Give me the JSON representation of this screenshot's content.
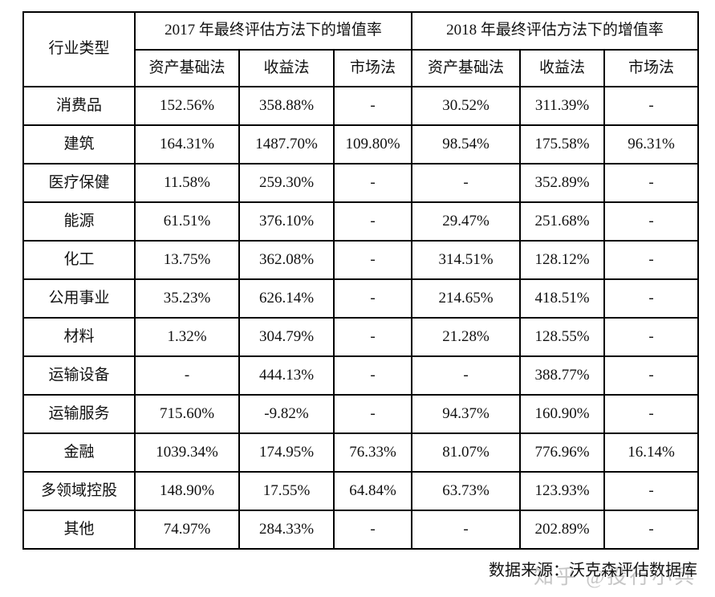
{
  "table": {
    "corner_header": "行业类型",
    "year_headers": [
      "2017 年最终评估方法下的增值率",
      "2018 年最终评估方法下的增值率"
    ],
    "method_headers": [
      "资产基础法",
      "收益法",
      "市场法",
      "资产基础法",
      "收益法",
      "市场法"
    ],
    "rows": [
      {
        "industry": "消费品",
        "values": [
          "152.56%",
          "358.88%",
          "-",
          "30.52%",
          "311.39%",
          "-"
        ]
      },
      {
        "industry": "建筑",
        "values": [
          "164.31%",
          "1487.70%",
          "109.80%",
          "98.54%",
          "175.58%",
          "96.31%"
        ]
      },
      {
        "industry": "医疗保健",
        "values": [
          "11.58%",
          "259.30%",
          "-",
          "-",
          "352.89%",
          "-"
        ]
      },
      {
        "industry": "能源",
        "values": [
          "61.51%",
          "376.10%",
          "-",
          "29.47%",
          "251.68%",
          "-"
        ]
      },
      {
        "industry": "化工",
        "values": [
          "13.75%",
          "362.08%",
          "-",
          "314.51%",
          "128.12%",
          "-"
        ]
      },
      {
        "industry": "公用事业",
        "values": [
          "35.23%",
          "626.14%",
          "-",
          "214.65%",
          "418.51%",
          "-"
        ]
      },
      {
        "industry": "材料",
        "values": [
          "1.32%",
          "304.79%",
          "-",
          "21.28%",
          "128.55%",
          "-"
        ]
      },
      {
        "industry": "运输设备",
        "values": [
          "-",
          "444.13%",
          "-",
          "-",
          "388.77%",
          "-"
        ]
      },
      {
        "industry": "运输服务",
        "values": [
          "715.60%",
          "-9.82%",
          "-",
          "94.37%",
          "160.90%",
          "-"
        ]
      },
      {
        "industry": "金融",
        "values": [
          "1039.34%",
          "174.95%",
          "76.33%",
          "81.07%",
          "776.96%",
          "16.14%"
        ]
      },
      {
        "industry": "多领域控股",
        "values": [
          "148.90%",
          "17.55%",
          "64.84%",
          "63.73%",
          "123.93%",
          "-"
        ]
      },
      {
        "industry": "其他",
        "values": [
          "74.97%",
          "284.33%",
          "-",
          "-",
          "202.89%",
          "-"
        ]
      }
    ]
  },
  "footer": {
    "source_text": "数据来源：沃克森评估数据库",
    "watermark_text": "知乎 @投行小兵"
  },
  "colors": {
    "background": "#ffffff",
    "text": "#111111",
    "border": "#000000",
    "watermark": "#c6c6c6"
  }
}
